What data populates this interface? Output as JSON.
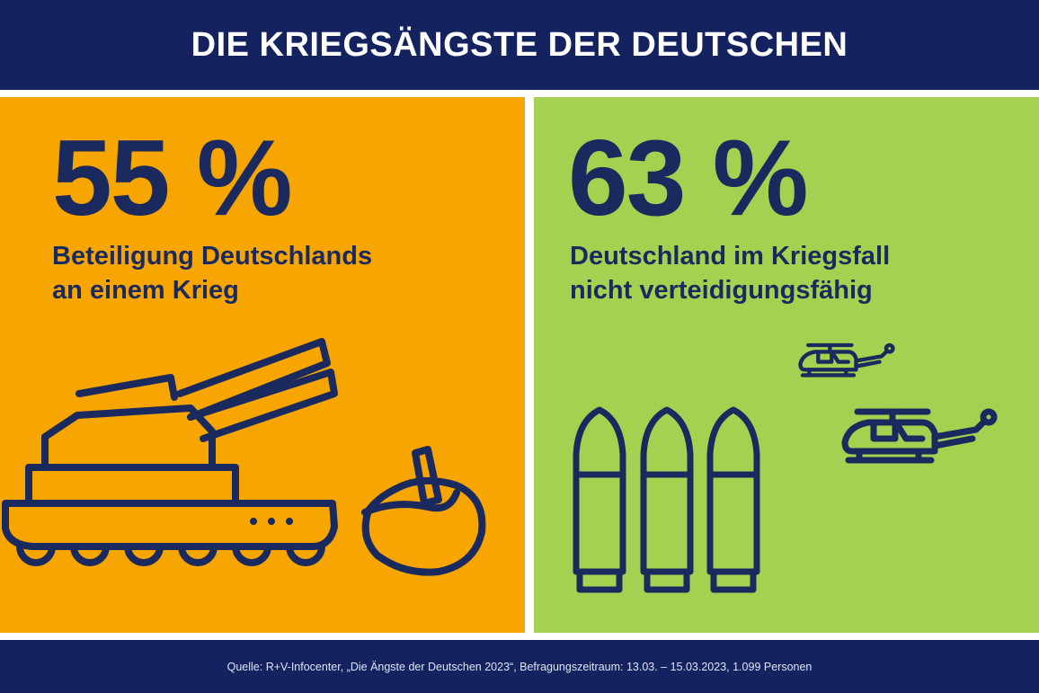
{
  "header": {
    "title": "DIE KRIEGSÄNGSTE DER DEUTSCHEN"
  },
  "panels": [
    {
      "value": "55 %",
      "lines": [
        "Beteiligung Deutschlands",
        "an einem Krieg"
      ],
      "background": "#f7a500",
      "icons": [
        "tank-icon",
        "helmet-icon"
      ]
    },
    {
      "value": "63 %",
      "lines": [
        "Deutschland im Kriegsfall",
        "nicht verteidigungsfähig"
      ],
      "background": "#a6d150",
      "icons": [
        "helicopter-icon",
        "helicopter-icon",
        "bullet-icon",
        "bullet-icon",
        "bullet-icon"
      ]
    }
  ],
  "footer": {
    "source": "Quelle: R+V-Infocenter, „Die Ängste der Deutschen 2023“, Befragungszeitraum: 13.03. – 15.03.2023, 1.099 Personen"
  },
  "colors": {
    "navy": "#142360",
    "text": "#1b2a5e",
    "orange": "#f7a500",
    "green": "#a6d150"
  }
}
